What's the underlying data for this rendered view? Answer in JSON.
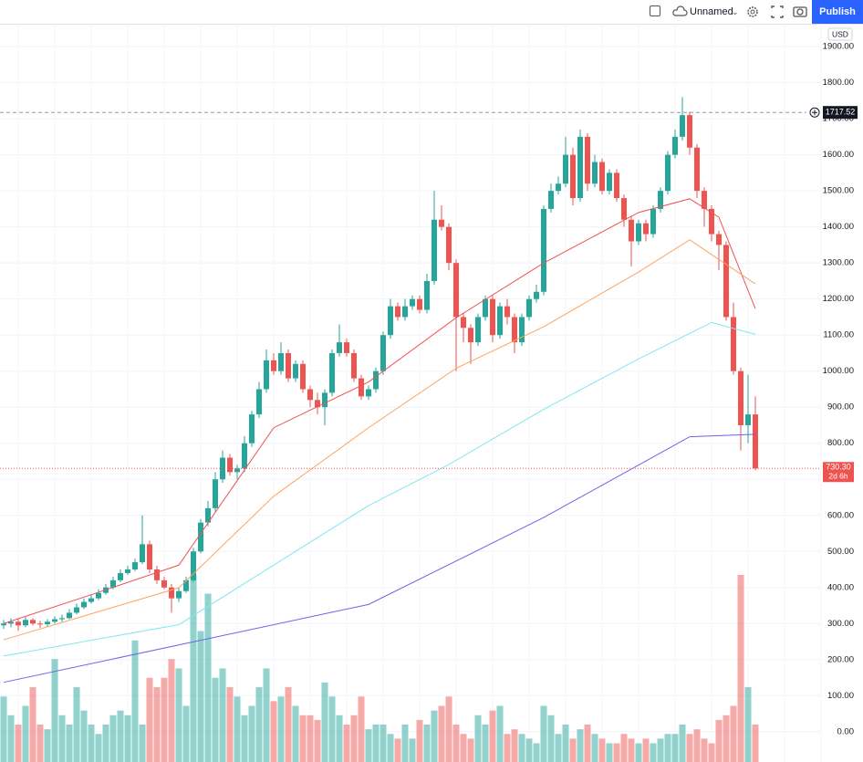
{
  "toolbar": {
    "layout_name": "Unnamed",
    "publish": "Publish"
  },
  "chart_data": {
    "type": "candlestick",
    "currency": "USD",
    "up_color": "#26a69a",
    "down_color": "#ef5350",
    "ylim": [
      -84,
      1961
    ],
    "yticks": [
      {
        "value": 0,
        "label": "0.00"
      },
      {
        "value": 100,
        "label": "100.00"
      },
      {
        "value": 200,
        "label": "200.00"
      },
      {
        "value": 300,
        "label": "300.00"
      },
      {
        "value": 400,
        "label": "400.00"
      },
      {
        "value": 500,
        "label": "500.00"
      },
      {
        "value": 600,
        "label": "600.00"
      },
      {
        "value": 700,
        "label": "700.00"
      },
      {
        "value": 800,
        "label": "800.00"
      },
      {
        "value": 900,
        "label": "900.00"
      },
      {
        "value": 1000,
        "label": "1000.00"
      },
      {
        "value": 1100,
        "label": "1100.00"
      },
      {
        "value": 1200,
        "label": "1200.00"
      },
      {
        "value": 1300,
        "label": "1300.00"
      },
      {
        "value": 1400,
        "label": "1400.00"
      },
      {
        "value": 1500,
        "label": "1500.00"
      },
      {
        "value": 1600,
        "label": "1600.00"
      },
      {
        "value": 1700,
        "label": "1700.00"
      },
      {
        "value": 1800,
        "label": "1800.00"
      },
      {
        "value": 1900,
        "label": "1900.00"
      }
    ],
    "grid": true,
    "open": [
      295,
      300,
      305,
      295,
      310,
      300,
      298,
      305,
      312,
      315,
      330,
      345,
      360,
      370,
      385,
      400,
      420,
      440,
      450,
      470,
      520,
      450,
      420,
      400,
      370,
      390,
      420,
      500,
      580,
      620,
      700,
      760,
      720,
      730,
      800,
      880,
      950,
      1030,
      1000,
      1050,
      980,
      1020,
      950,
      920,
      900,
      940,
      1050,
      1080,
      1050,
      980,
      930,
      950,
      1000,
      1100,
      1180,
      1150,
      1180,
      1200,
      1170,
      1250,
      1420,
      1400,
      1300,
      1150,
      1120,
      1080,
      1150,
      1200,
      1100,
      1180,
      1150,
      1080,
      1150,
      1200,
      1220,
      1450,
      1500,
      1520,
      1600,
      1480,
      1650,
      1520,
      1580,
      1500,
      1550,
      1480,
      1420,
      1360,
      1410,
      1380,
      1450,
      1500,
      1600,
      1650,
      1710,
      1620,
      1500,
      1450,
      1380,
      1350,
      1150,
      1000,
      850,
      880
    ],
    "high": [
      310,
      315,
      312,
      318,
      315,
      308,
      312,
      320,
      325,
      340,
      355,
      370,
      380,
      395,
      410,
      430,
      450,
      460,
      480,
      600,
      530,
      460,
      430,
      410,
      400,
      430,
      510,
      590,
      640,
      720,
      780,
      770,
      740,
      820,
      890,
      970,
      1060,
      1050,
      1080,
      1060,
      1030,
      1030,
      960,
      940,
      950,
      1060,
      1130,
      1090,
      1060,
      990,
      960,
      1010,
      1110,
      1200,
      1190,
      1200,
      1210,
      1210,
      1270,
      1500,
      1460,
      1410,
      1310,
      1160,
      1130,
      1160,
      1210,
      1210,
      1190,
      1200,
      1160,
      1160,
      1210,
      1240,
      1460,
      1520,
      1540,
      1650,
      1620,
      1670,
      1660,
      1600,
      1590,
      1560,
      1560,
      1490,
      1430,
      1420,
      1420,
      1460,
      1510,
      1610,
      1670,
      1760,
      1720,
      1630,
      1510,
      1460,
      1390,
      1360,
      1190,
      1010,
      990,
      930
    ],
    "low": [
      285,
      290,
      280,
      290,
      295,
      288,
      290,
      300,
      305,
      312,
      325,
      340,
      355,
      365,
      380,
      395,
      415,
      435,
      445,
      465,
      440,
      410,
      395,
      330,
      360,
      385,
      415,
      495,
      570,
      610,
      690,
      710,
      700,
      720,
      790,
      870,
      940,
      990,
      990,
      970,
      970,
      940,
      900,
      880,
      850,
      930,
      1040,
      1040,
      970,
      920,
      920,
      940,
      990,
      1090,
      1140,
      1140,
      1170,
      1160,
      1160,
      1240,
      1390,
      1280,
      1000,
      1080,
      1020,
      1070,
      1140,
      1080,
      1090,
      1130,
      1050,
      1070,
      1140,
      1190,
      1210,
      1440,
      1490,
      1510,
      1460,
      1470,
      1500,
      1510,
      1490,
      1490,
      1470,
      1400,
      1290,
      1350,
      1360,
      1370,
      1440,
      1490,
      1590,
      1640,
      1600,
      1480,
      1400,
      1360,
      1280,
      1140,
      990,
      780,
      800,
      725
    ],
    "close": [
      300,
      305,
      295,
      310,
      300,
      298,
      305,
      312,
      315,
      330,
      345,
      360,
      370,
      385,
      400,
      420,
      440,
      450,
      470,
      520,
      450,
      420,
      400,
      370,
      390,
      420,
      500,
      580,
      620,
      700,
      760,
      720,
      730,
      800,
      880,
      950,
      1030,
      1000,
      1050,
      980,
      1020,
      950,
      920,
      900,
      940,
      1050,
      1080,
      1050,
      980,
      930,
      950,
      1000,
      1100,
      1180,
      1150,
      1180,
      1200,
      1170,
      1250,
      1420,
      1400,
      1300,
      1150,
      1120,
      1080,
      1150,
      1200,
      1100,
      1180,
      1150,
      1080,
      1150,
      1200,
      1220,
      1450,
      1500,
      1520,
      1600,
      1480,
      1650,
      1520,
      1580,
      1500,
      1550,
      1480,
      1420,
      1360,
      1410,
      1380,
      1450,
      1500,
      1600,
      1650,
      1710,
      1620,
      1500,
      1450,
      1380,
      1350,
      1150,
      1000,
      850,
      880,
      730.3
    ],
    "volume": [
      70,
      50,
      40,
      60,
      80,
      40,
      35,
      110,
      50,
      40,
      80,
      55,
      40,
      30,
      40,
      50,
      55,
      50,
      130,
      40,
      90,
      80,
      90,
      110,
      100,
      60,
      200,
      140,
      180,
      90,
      100,
      80,
      70,
      50,
      60,
      80,
      100,
      65,
      70,
      80,
      60,
      50,
      50,
      45,
      85,
      70,
      50,
      40,
      50,
      70,
      35,
      40,
      40,
      30,
      25,
      40,
      25,
      45,
      40,
      55,
      60,
      70,
      40,
      30,
      25,
      50,
      40,
      55,
      60,
      30,
      35,
      30,
      25,
      20,
      60,
      50,
      30,
      40,
      25,
      35,
      40,
      30,
      25,
      20,
      20,
      30,
      25,
      20,
      25,
      20,
      25,
      30,
      30,
      40,
      30,
      35,
      25,
      20,
      45,
      50,
      60,
      200,
      80,
      40
    ],
    "series": [
      {
        "color": "#f0524f",
        "x": [
          0,
          12,
          24,
          37,
          50,
          62,
          74,
          87,
          94,
          98,
          103
        ],
        "values": [
          300,
          380,
          462,
          843,
          970,
          1148,
          1300,
          1440,
          1478,
          1427,
          1173
        ]
      },
      {
        "color": "#ffa45c",
        "x": [
          0,
          24,
          37,
          50,
          62,
          74,
          87,
          94,
          103
        ],
        "values": [
          255,
          399,
          653,
          843,
          1008,
          1123,
          1275,
          1364,
          1242
        ]
      },
      {
        "color": "#7ee8f0",
        "x": [
          0,
          24,
          50,
          61,
          74,
          87,
          97,
          103
        ],
        "values": [
          210,
          297,
          627,
          741,
          894,
          1034,
          1135,
          1102
        ]
      },
      {
        "color": "#6c63e8",
        "x": [
          0,
          50,
          74,
          94,
          103
        ],
        "values": [
          137,
          353,
          594,
          818,
          825
        ]
      }
    ],
    "crosshair_price": 1717.52,
    "last_price": {
      "value": 730.3,
      "label": "730.30"
    },
    "countdown": "2d 6h"
  }
}
